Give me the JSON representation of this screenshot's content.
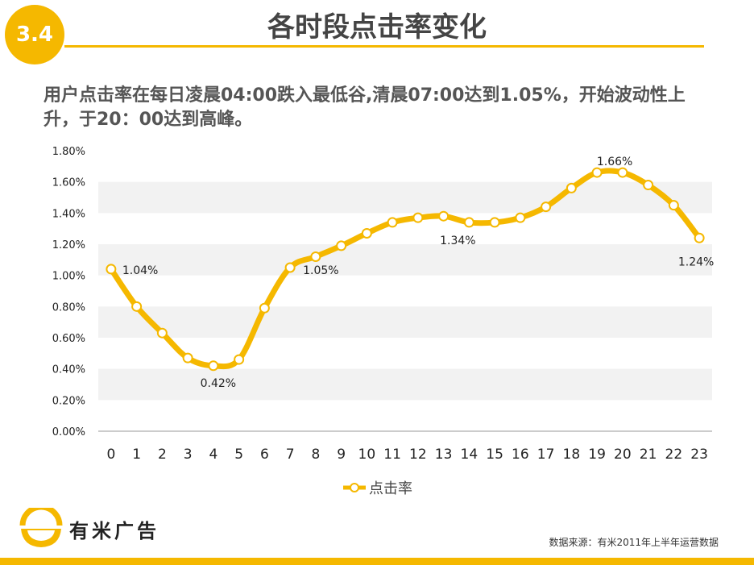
{
  "header": {
    "badge": "3.4",
    "title": "各时段点击率变化",
    "subtitle": "用户点击率在每日凌晨04:00跌入最低谷,清晨07:00达到1.05%，开始波动性上升，于20：00达到高峰。"
  },
  "footer": {
    "logo_text": "有米广告",
    "source": "数据来源：有米2011年上半年运营数据"
  },
  "colors": {
    "accent": "#f5b800",
    "line": "#f5b800",
    "band": "#f2f2f2"
  },
  "chart_data": {
    "type": "line",
    "categories": [
      "0",
      "1",
      "2",
      "3",
      "4",
      "5",
      "6",
      "7",
      "8",
      "9",
      "10",
      "11",
      "12",
      "13",
      "14",
      "15",
      "16",
      "17",
      "18",
      "19",
      "20",
      "21",
      "22",
      "23"
    ],
    "y_ticks": [
      "0.00%",
      "0.20%",
      "0.40%",
      "0.60%",
      "0.80%",
      "1.00%",
      "1.20%",
      "1.40%",
      "1.60%",
      "1.80%"
    ],
    "ylim": [
      0,
      1.8
    ],
    "series": [
      {
        "name": "点击率",
        "values": [
          1.04,
          0.8,
          0.63,
          0.47,
          0.42,
          0.46,
          0.79,
          1.05,
          1.12,
          1.19,
          1.27,
          1.34,
          1.37,
          1.38,
          1.34,
          1.34,
          1.37,
          1.44,
          1.56,
          1.66,
          1.66,
          1.58,
          1.45,
          1.24
        ]
      }
    ],
    "data_labels": [
      {
        "index": 0,
        "text": "1.04%"
      },
      {
        "index": 4,
        "text": "0.42%"
      },
      {
        "index": 7,
        "text": "1.05%"
      },
      {
        "index": 14,
        "text": "1.34%"
      },
      {
        "index": 19,
        "text": "1.66%"
      },
      {
        "index": 23,
        "text": "1.24%"
      }
    ],
    "legend_position": "bottom",
    "grid": "alternating bands"
  }
}
